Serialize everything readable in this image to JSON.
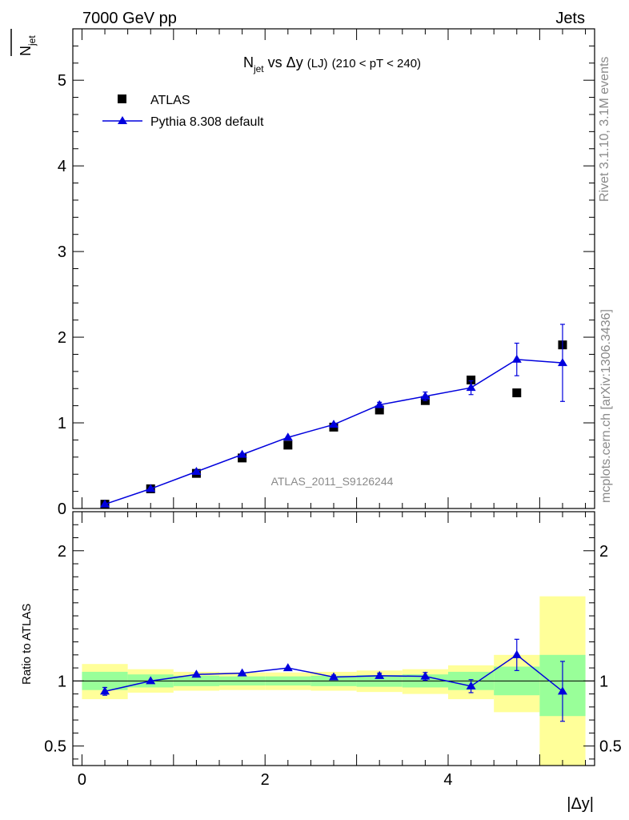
{
  "header": {
    "left": "7000 GeV pp",
    "right": "Jets"
  },
  "side_labels": {
    "rivet": "Rivet 3.1.10,  3.1M events",
    "mcplots": "mcplots.cern.ch [arXiv:1306.3436]"
  },
  "watermark": "ATLAS_2011_S9126244",
  "colors": {
    "mc": "#0000dd",
    "data": "#000000",
    "band_inner": "#99ff99",
    "band_outer": "#ffff99"
  },
  "chart_data": [
    {
      "type": "scatter",
      "title": "N_jet vs Δy (LJ) (210 < pT < 240)",
      "title_parts": {
        "n": "N",
        "sub": "jet",
        "vs": "vs",
        "dy": "Δy",
        "lj": "(LJ)",
        "range": "(210 < pT < 240)"
      },
      "ylabel": "N_jet",
      "ylabel_parts": {
        "n": "N",
        "sub": "jet"
      },
      "xlim": [
        -0.1,
        5.6
      ],
      "ylim": [
        0,
        5.6
      ],
      "yticks": [
        0,
        1,
        2,
        3,
        4,
        5
      ],
      "ytick_labels": [
        "0",
        "1",
        "2",
        "3",
        "4",
        "5"
      ],
      "legend_position": "top-left",
      "series": [
        {
          "name": "ATLAS",
          "marker": "square",
          "x": [
            0.25,
            0.75,
            1.25,
            1.75,
            2.25,
            2.75,
            3.25,
            3.75,
            4.25,
            4.75,
            5.25
          ],
          "y": [
            0.05,
            0.23,
            0.41,
            0.59,
            0.74,
            0.95,
            1.15,
            1.26,
            1.5,
            1.35,
            1.91
          ]
        },
        {
          "name": "Pythia 8.308 default",
          "marker": "triangle",
          "x": [
            0.25,
            0.75,
            1.25,
            1.75,
            2.25,
            2.75,
            3.25,
            3.75,
            4.25,
            4.75,
            5.25
          ],
          "y": [
            0.05,
            0.23,
            0.43,
            0.63,
            0.83,
            0.98,
            1.21,
            1.31,
            1.41,
            1.74,
            1.7
          ],
          "err": [
            0.01,
            0.01,
            0.01,
            0.01,
            0.01,
            0.02,
            0.03,
            0.05,
            0.08,
            0.19,
            0.45
          ]
        }
      ]
    },
    {
      "type": "scatter",
      "ylabel": "Ratio to ATLAS",
      "xlabel": "|Δy|",
      "xlim": [
        -0.1,
        5.6
      ],
      "ylim": [
        0.35,
        2.3
      ],
      "yticks": [
        0.5,
        1,
        2
      ],
      "ytick_labels": [
        "0.5",
        "1",
        "2"
      ],
      "xticks": [
        0,
        2,
        4
      ],
      "xtick_labels": [
        "0",
        "2",
        "4"
      ],
      "reference_line": 1,
      "bands": {
        "edges": [
          0,
          0.5,
          1.0,
          1.5,
          2.0,
          2.5,
          3.0,
          3.5,
          4.0,
          4.5,
          5.0,
          5.5
        ],
        "inner_low": [
          0.93,
          0.95,
          0.96,
          0.965,
          0.965,
          0.96,
          0.955,
          0.95,
          0.93,
          0.89,
          0.73
        ],
        "inner_high": [
          1.07,
          1.05,
          1.04,
          1.035,
          1.035,
          1.04,
          1.045,
          1.05,
          1.07,
          1.11,
          1.2
        ],
        "outer_low": [
          0.86,
          0.91,
          0.925,
          0.93,
          0.93,
          0.925,
          0.915,
          0.9,
          0.86,
          0.76,
          0.35
        ],
        "outer_high": [
          1.13,
          1.09,
          1.07,
          1.065,
          1.065,
          1.07,
          1.08,
          1.09,
          1.12,
          1.2,
          1.65
        ]
      },
      "series": [
        {
          "name": "Pythia 8.308 default",
          "marker": "triangle",
          "x": [
            0.25,
            0.75,
            1.25,
            1.75,
            2.25,
            2.75,
            3.25,
            3.75,
            4.25,
            4.75,
            5.25
          ],
          "y": [
            0.92,
            1.0,
            1.05,
            1.06,
            1.1,
            1.03,
            1.04,
            1.035,
            0.96,
            1.2,
            0.92
          ],
          "err": [
            0.03,
            0.01,
            0.01,
            0.01,
            0.01,
            0.015,
            0.02,
            0.03,
            0.05,
            0.12,
            0.23
          ]
        }
      ]
    }
  ]
}
